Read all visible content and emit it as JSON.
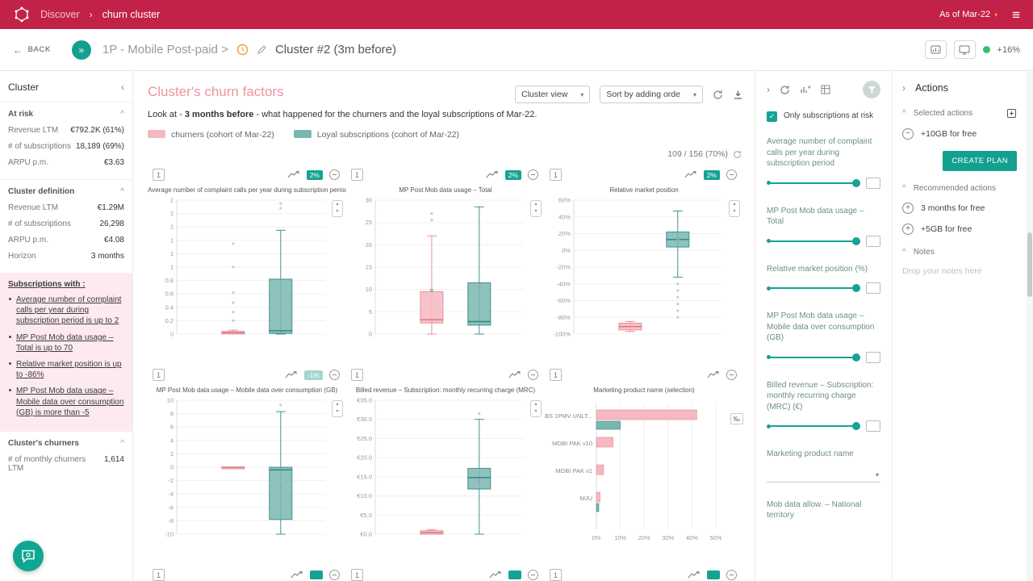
{
  "topbar": {
    "discover": "Discover",
    "sep": "›",
    "current": "churn cluster",
    "as_of": "As of Mar-22"
  },
  "subheader": {
    "back": "BACK",
    "path": "1P - Mobile Post-paid >",
    "cluster_title": "Cluster #2 (3m before)",
    "growth": "+16%"
  },
  "sidebar": {
    "title": "Cluster",
    "at_risk": {
      "title": "At risk",
      "rows": [
        {
          "label": "Revenue LTM",
          "value": "€792.2K (61%)"
        },
        {
          "label": "# of subscriptions",
          "value": "18,189 (69%)"
        },
        {
          "label": "ARPU p.m.",
          "value": "€3.63"
        }
      ]
    },
    "definition": {
      "title": "Cluster definition",
      "rows": [
        {
          "label": "Revenue LTM",
          "value": "€1.29M"
        },
        {
          "label": "# of subscriptions",
          "value": "26,298"
        },
        {
          "label": "ARPU p.m.",
          "value": "€4.08"
        },
        {
          "label": "Horizon",
          "value": "3 months"
        }
      ]
    },
    "subscriptions": {
      "title": "Subscriptions with :",
      "items": [
        "Average number of complaint calls per year during subscription period is up to 2",
        "MP Post Mob data usage – Total is up to 70",
        "Relative market position is up to -86%",
        "MP Post Mob data usage – Mobile data over consumption (GB) is more than -5"
      ]
    },
    "churners": {
      "title": "Cluster's churners",
      "rows": [
        {
          "label": "# of monthly churners LTM",
          "value": "1,614"
        }
      ]
    }
  },
  "main": {
    "title": "Cluster's churn factors",
    "desc_pre": "Look at - ",
    "desc_bold": "3 months before",
    "desc_post": " - what happened for the churners and the loyal subscriptions of Mar-22.",
    "legend": [
      {
        "label": "churners (cohort of Mar-22)"
      },
      {
        "label": "Loyal subscriptions (cohort of Mar-22)"
      }
    ],
    "view_select": "Cluster view",
    "sort_select": "Sort by adding orde",
    "count": "109 / 156 (70%)"
  },
  "filters": {
    "checkbox_label": "Only subscriptions at risk",
    "sliders": [
      "Average number of complaint calls per year during subscription period",
      "MP Post Mob data usage – Total",
      "Relative market position (%)",
      "MP Post Mob data usage – Mobile data over consumption (GB)",
      "Billed revenue – Subscription: monthly recurring charge (MRC) (€)"
    ],
    "dropdown_label": "Marketing product name",
    "partial_label": "Mob data allow. – National territory"
  },
  "actions": {
    "title": "Actions",
    "selected_title": "Selected actions",
    "selected_items": [
      "+10GB for free"
    ],
    "create_plan": "CREATE PLAN",
    "recommended_title": "Recommended actions",
    "recommended_items": [
      "3 months for free",
      "+5GB for free"
    ],
    "notes_title": "Notes",
    "notes_placeholder": "Drop your notes here"
  },
  "icons": {
    "back_arrow": "←",
    "double_chevron": "»",
    "menu": "≡",
    "caret": "▾",
    "collapse_left": "‹",
    "section_up": "^",
    "chevron_right": "›",
    "stepper_up": "▴",
    "stepper_down": "▾",
    "layer": "1",
    "check": "✓",
    "minus": "−",
    "plus": "+"
  },
  "colors": {
    "accent": "#c22247",
    "teal": "#13a08f",
    "churner_fill": "#f6b8c1",
    "churner_border": "#e8909c",
    "churner_median": "#d9727f",
    "loyal_fill": "#7ab7b1",
    "loyal_border": "#3e948c",
    "loyal_median": "#2f847c"
  },
  "chart_data": [
    {
      "type": "boxplot",
      "title": "Average number of complaint calls per year during subscription period",
      "badge": "2%",
      "badge_style": "solid",
      "ylim": [
        0,
        2
      ],
      "yticks": [
        2,
        1.8,
        1.6,
        1.4,
        1.2,
        1,
        0.8,
        0.6,
        0.4,
        0.2,
        0
      ],
      "ytick_labels": [
        "2",
        "2",
        "2",
        "1",
        "1",
        "1",
        "0.8",
        "0.6",
        "0.4",
        "0.2",
        "0"
      ],
      "series": [
        {
          "name": "churners",
          "min": 0,
          "q1": 0,
          "median": 0.02,
          "q3": 0.04,
          "max": 0.06,
          "outliers": [
            0.2,
            0.33,
            0.47,
            0.62,
            1.0,
            1.35
          ]
        },
        {
          "name": "loyal",
          "min": 0,
          "q1": 0.01,
          "median": 0.05,
          "q3": 0.82,
          "max": 1.55,
          "outliers": [
            1.88,
            1.95
          ]
        }
      ]
    },
    {
      "type": "boxplot",
      "title": "MP Post Mob data usage – Total",
      "badge": "2%",
      "badge_style": "solid",
      "ylim": [
        0,
        30
      ],
      "yticks": [
        30,
        25,
        20,
        15,
        10,
        5,
        0
      ],
      "ytick_labels": [
        "30",
        "25",
        "20",
        "15",
        "10",
        "5",
        "0"
      ],
      "series": [
        {
          "name": "churners",
          "min": 0,
          "q1": 2.5,
          "median": 3.2,
          "q3": 9.5,
          "max": 22,
          "mean": 9.8,
          "outliers": [
            25.5,
            27
          ]
        },
        {
          "name": "loyal",
          "min": 0,
          "q1": 2,
          "median": 2.8,
          "q3": 11.5,
          "max": 28.5,
          "mean": 10.4,
          "outliers": []
        }
      ]
    },
    {
      "type": "boxplot",
      "title": "Relative market position",
      "badge": "2%",
      "badge_style": "solid",
      "ylim": [
        -100,
        60
      ],
      "yticks": [
        60,
        40,
        20,
        0,
        -20,
        -40,
        -60,
        -80,
        -100
      ],
      "ytick_labels": [
        "60%",
        "40%",
        "20%",
        "0%",
        "-20%",
        "-40%",
        "-60%",
        "-80%",
        "-100%"
      ],
      "series": [
        {
          "name": "churners",
          "min": -97,
          "q1": -95,
          "median": -91,
          "q3": -87,
          "max": -85,
          "outliers": []
        },
        {
          "name": "loyal",
          "min": -32,
          "q1": 4,
          "median": 13,
          "q3": 22,
          "max": 47,
          "mean": 14,
          "outliers": [
            -40,
            -48,
            -56,
            -64,
            -72,
            -80
          ]
        }
      ]
    },
    {
      "type": "boxplot",
      "title": "MP Post Mob data usage – Mobile data over consumption (GB)",
      "badge": "-1%",
      "badge_style": "faded",
      "ylim": [
        -10,
        10
      ],
      "yticks": [
        10,
        8,
        6,
        4,
        2,
        0,
        -2,
        -4,
        -6,
        -8,
        -10
      ],
      "ytick_labels": [
        "10",
        "8",
        "6",
        "4",
        "2",
        "0",
        "-2",
        "-4",
        "-6",
        "-8",
        "-10"
      ],
      "series": [
        {
          "name": "churners",
          "min": 0,
          "q1": 0,
          "median": 0,
          "q3": 0,
          "max": 0,
          "outliers": []
        },
        {
          "name": "loyal",
          "min": -10,
          "q1": -7.8,
          "median": -0.4,
          "q3": 0,
          "max": 8.3,
          "mean": -3,
          "outliers": [
            9.3
          ]
        }
      ]
    },
    {
      "type": "boxplot",
      "title": "Billed revenue – Subscription: monthly recurring charge (MRC)",
      "badge": null,
      "badge_style": "none",
      "ylim": [
        0,
        35
      ],
      "yticks": [
        35,
        30,
        25,
        20,
        15,
        10,
        5,
        0
      ],
      "ytick_labels": [
        "€35.0",
        "€30.0",
        "€25.0",
        "€20.0",
        "€15.0",
        "€10.0",
        "€5.0",
        "€0.0"
      ],
      "series": [
        {
          "name": "churners",
          "min": 0,
          "q1": 0,
          "median": 0.4,
          "q3": 0.9,
          "max": 1.2,
          "outliers": []
        },
        {
          "name": "loyal",
          "min": 0,
          "q1": 11.8,
          "median": 14.8,
          "q3": 17.2,
          "max": 30,
          "mean": 14,
          "outliers": [
            31.5
          ]
        }
      ]
    },
    {
      "type": "bar",
      "title": "Marketing product name (selection)",
      "badge": null,
      "badge_style": "none",
      "categories": [
        "BS 1PMV UNLT...",
        "MOBI PAK v10",
        "MOBI PAK v1",
        "MJU"
      ],
      "series": [
        {
          "name": "churners",
          "values": [
            42,
            7,
            3,
            1.5
          ]
        },
        {
          "name": "loyal",
          "values": [
            10,
            0,
            0,
            1
          ]
        }
      ],
      "xlim": [
        0,
        50
      ],
      "xticks": [
        0,
        10,
        20,
        30,
        40,
        50
      ],
      "xtick_labels": [
        "0%",
        "10%",
        "20%",
        "30%",
        "40%",
        "50%"
      ],
      "unit_toggle": "‰"
    }
  ],
  "stub_count": 3
}
